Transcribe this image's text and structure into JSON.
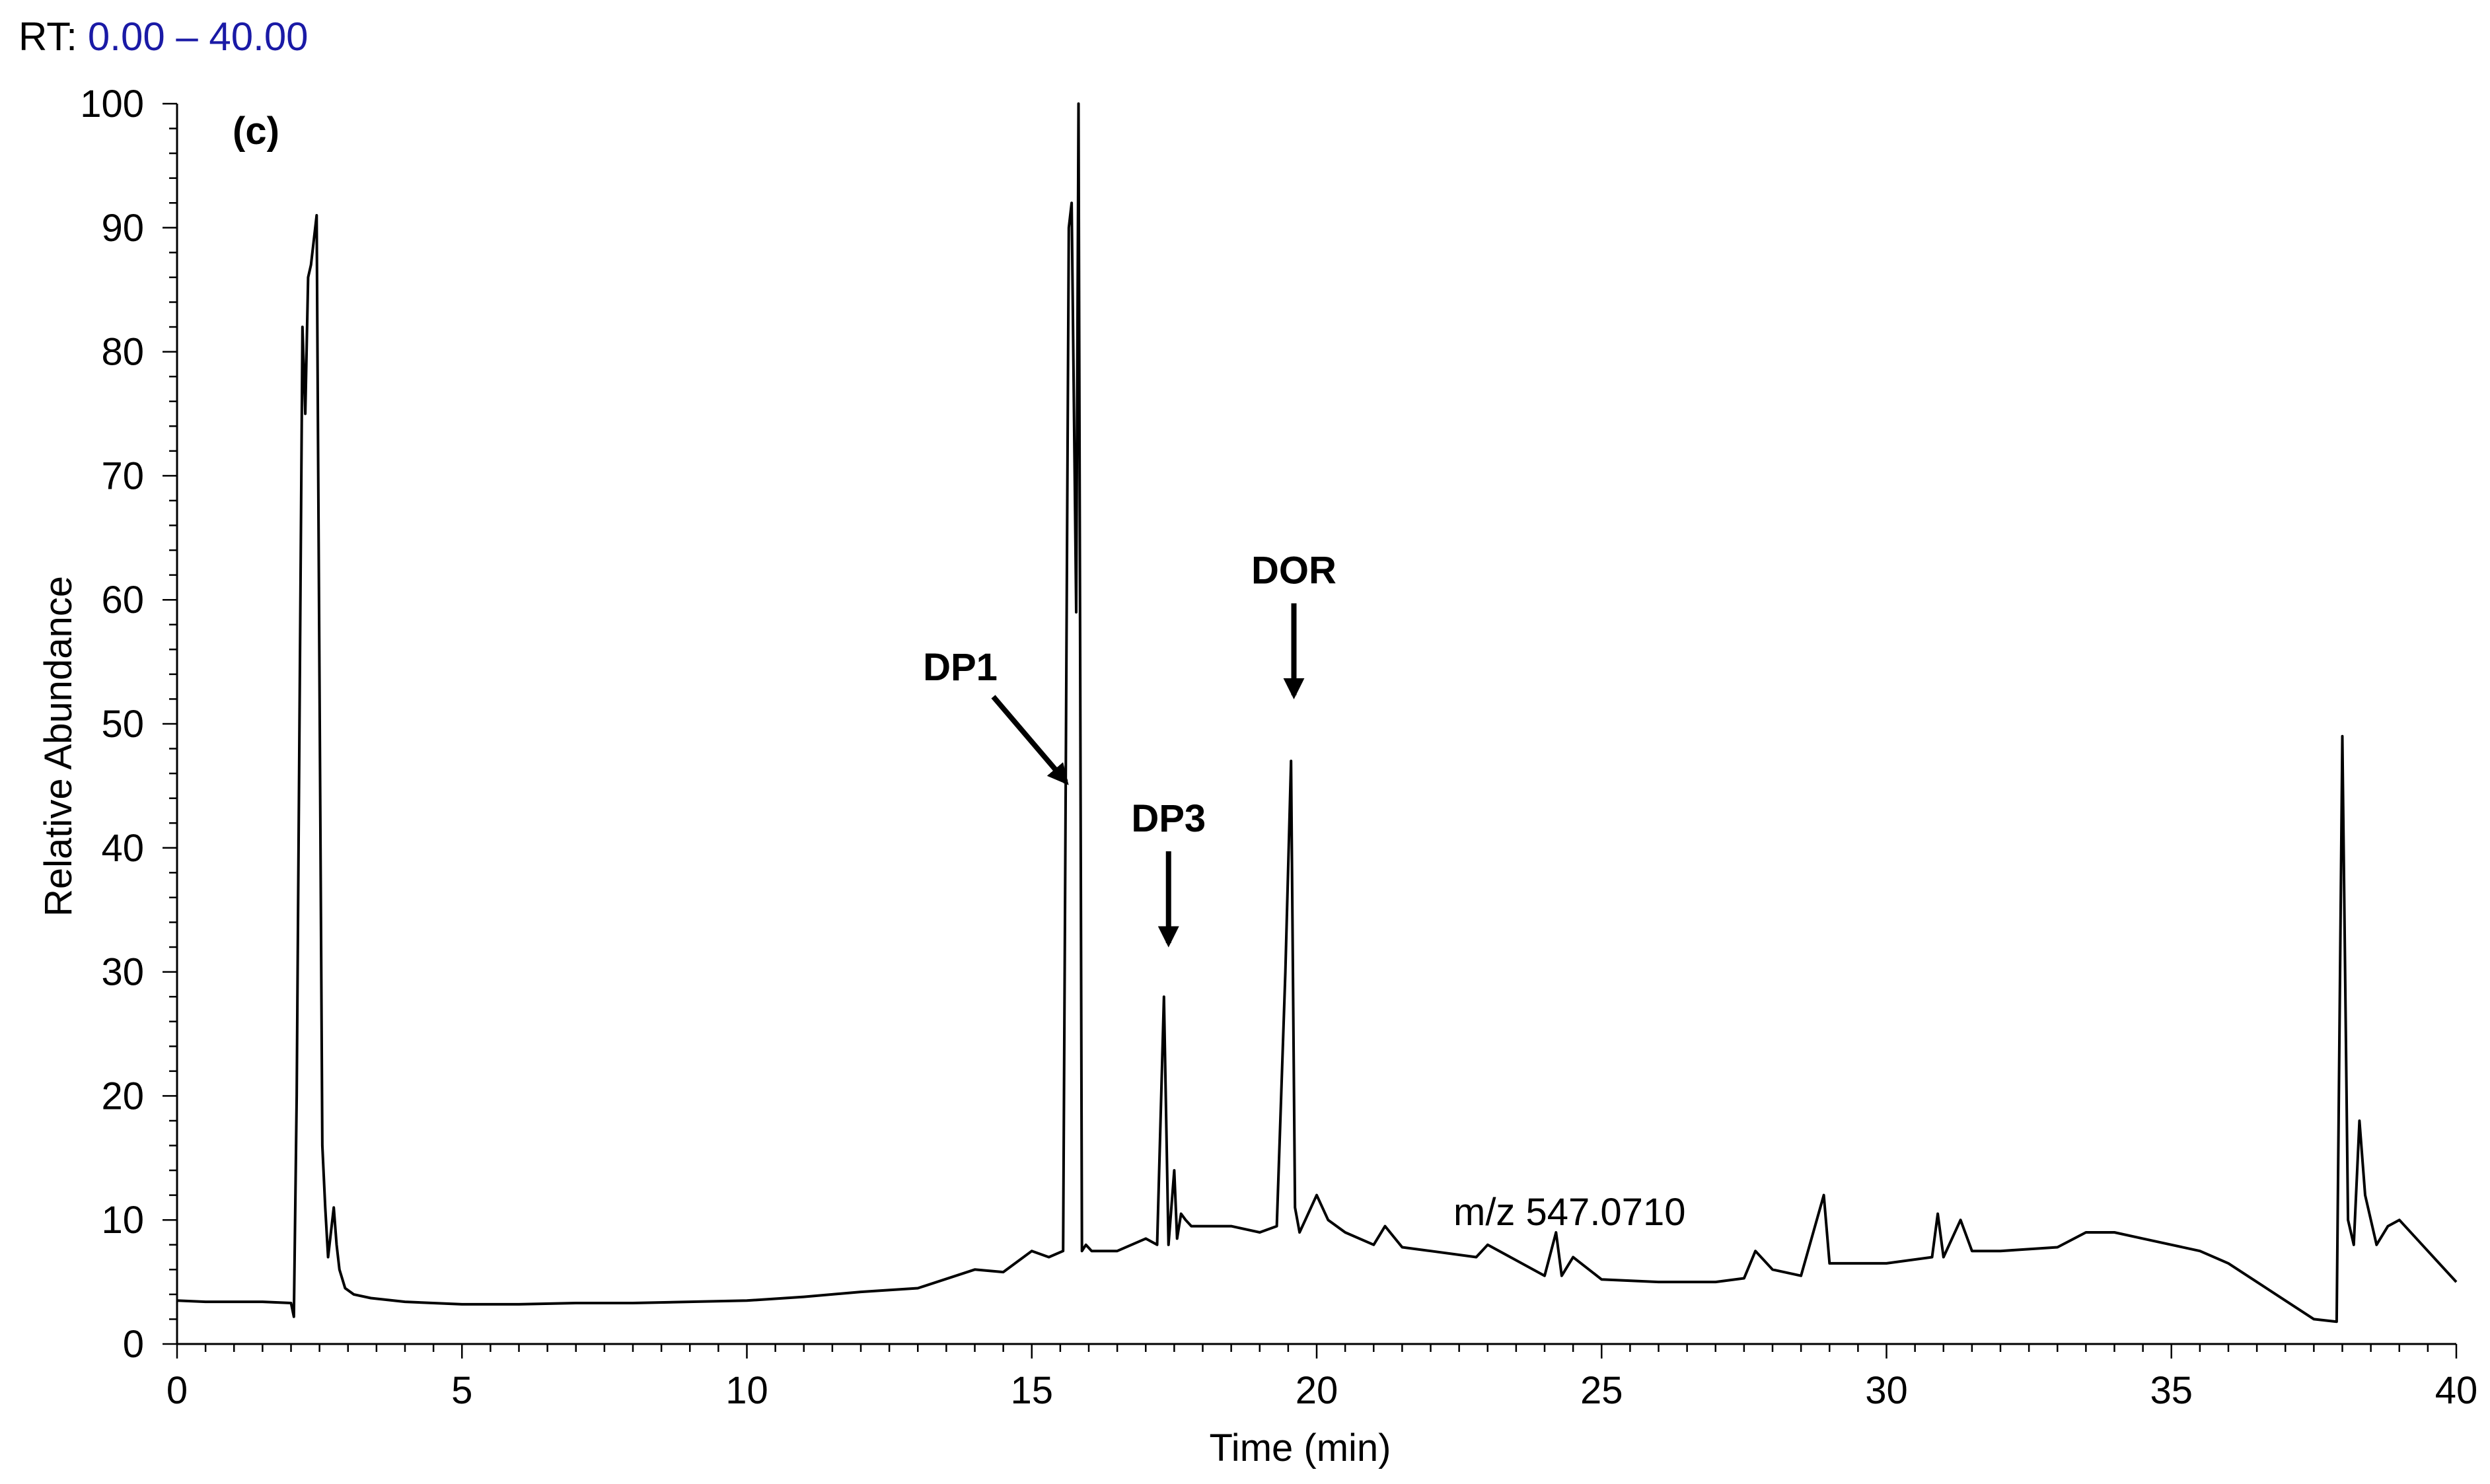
{
  "header": {
    "rt_label": "RT:",
    "rt_range": "0.00 – 40.00"
  },
  "colors": {
    "line": "#000000",
    "rt_range": "#1a1aa6",
    "background": "#ffffff"
  },
  "chart_data": {
    "type": "line",
    "panel_label": "(c)",
    "xlabel": "Time (min)",
    "ylabel": "Relative Abundance",
    "xlim": [
      0,
      40
    ],
    "ylim": [
      0,
      100
    ],
    "x_ticks": [
      "0",
      "5",
      "10",
      "15",
      "20",
      "25",
      "30",
      "35",
      "40"
    ],
    "y_ticks": [
      "0",
      "10",
      "20",
      "30",
      "40",
      "50",
      "60",
      "70",
      "80",
      "90",
      "100"
    ],
    "grid": false,
    "legend": "none",
    "annotation_text": "m/z 547.0710",
    "peak_labels": [
      {
        "text": "DP1",
        "x": 15.6,
        "y": 45
      },
      {
        "text": "DP3",
        "x": 17.4,
        "y": 32
      },
      {
        "text": "DOR",
        "x": 19.6,
        "y": 52
      }
    ],
    "series": [
      {
        "x": [
          0,
          0.5,
          1,
          1.5,
          2.0,
          2.05,
          2.1,
          2.2,
          2.25,
          2.3,
          2.35,
          2.45,
          2.55,
          2.6,
          2.65,
          2.75,
          2.8,
          2.85,
          2.95,
          3.1,
          3.4,
          4,
          5,
          6,
          7,
          8,
          9,
          10,
          11,
          12,
          13,
          14,
          14.5,
          15,
          15.3,
          15.55,
          15.65,
          15.7,
          15.78,
          15.82,
          15.88,
          15.95,
          16.05,
          16.5,
          17,
          17.2,
          17.32,
          17.4,
          17.5,
          17.55,
          17.62,
          17.7,
          17.8,
          18,
          18.5,
          19,
          19.3,
          19.45,
          19.55,
          19.62,
          19.7,
          19.8,
          20.0,
          20.2,
          20.5,
          21,
          21.2,
          21.5,
          22,
          22.8,
          23,
          24,
          24.2,
          24.3,
          24.5,
          25,
          26,
          27,
          27.5,
          27.7,
          28,
          28.5,
          28.9,
          29.0,
          29.2,
          30,
          30.8,
          30.9,
          31,
          31.3,
          31.5,
          32,
          33,
          33.5,
          34,
          34.5,
          35,
          35.5,
          36,
          36.5,
          37,
          37.5,
          37.9,
          38.0,
          38.1,
          38.2,
          38.3,
          38.4,
          38.6,
          38.8,
          39,
          39.5,
          40
        ],
        "y": [
          3.5,
          3.4,
          3.4,
          3.4,
          3.3,
          2.2,
          20,
          82,
          75,
          86,
          87,
          91,
          16,
          11,
          7,
          11,
          8,
          6,
          4.5,
          4.0,
          3.7,
          3.4,
          3.2,
          3.2,
          3.3,
          3.3,
          3.4,
          3.5,
          3.8,
          4.2,
          4.5,
          6,
          5.8,
          7.5,
          7.0,
          7.5,
          90,
          92,
          59,
          100,
          7.5,
          8.0,
          7.5,
          7.5,
          8.5,
          8.0,
          28,
          8.0,
          14,
          8.5,
          10.5,
          10,
          9.5,
          9.5,
          9.5,
          9.0,
          9.5,
          30,
          47,
          11,
          9.0,
          10,
          12,
          10,
          9.0,
          8.0,
          9.5,
          7.8,
          7.5,
          7.0,
          8.0,
          5.5,
          9.0,
          5.5,
          7.0,
          5.2,
          5.0,
          5.0,
          5.3,
          7.5,
          6.0,
          5.5,
          12,
          6.5,
          6.5,
          6.5,
          7.0,
          10.5,
          7.0,
          10,
          7.5,
          7.5,
          7.8,
          9.0,
          9.0,
          8.5,
          8.0,
          7.5,
          6.5,
          5.0,
          3.5,
          2.0,
          1.8,
          49,
          10,
          8.0,
          18,
          12,
          8.0,
          9.5,
          10,
          7.5,
          5.0
        ]
      }
    ]
  }
}
